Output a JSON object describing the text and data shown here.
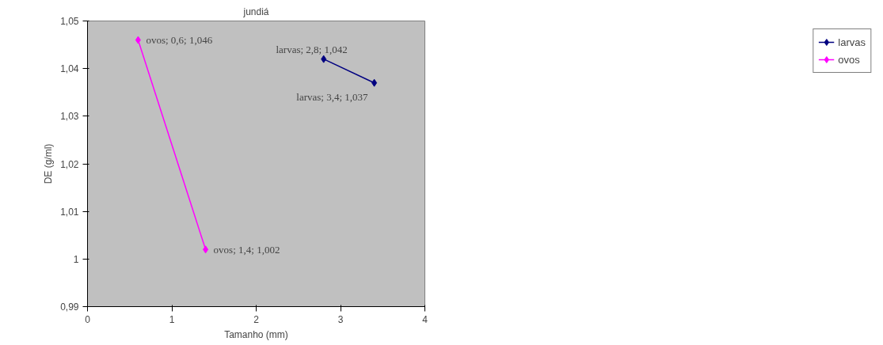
{
  "chart_data": {
    "type": "line",
    "title": "jundiá",
    "xlabel": "Tamanho (mm)",
    "ylabel": "DE (g/ml)",
    "xlim": [
      0,
      4
    ],
    "xticks": [
      0,
      1,
      2,
      3,
      4
    ],
    "ylim": [
      0.99,
      1.05
    ],
    "yticks": [
      {
        "value": 0.99,
        "label": "0,99"
      },
      1,
      {
        "value": 1.01,
        "label": "1,01"
      },
      {
        "value": 1.02,
        "label": "1,02"
      },
      {
        "value": 1.03,
        "label": "1,03"
      },
      {
        "value": 1.04,
        "label": "1,04"
      },
      {
        "value": 1.05,
        "label": "1,05"
      }
    ],
    "series": [
      {
        "name": "larvas",
        "color": "#000080",
        "x": [
          2.8,
          3.4
        ],
        "values": [
          1.042,
          1.037
        ],
        "value_labels": [
          "larvas; 2,8; 1,042",
          "larvas; 3,4; 1,037"
        ]
      },
      {
        "name": "ovos",
        "color": "#ff00ff",
        "x": [
          0.6,
          1.4
        ],
        "values": [
          1.046,
          1.002
        ],
        "value_labels": [
          "ovos; 0,6; 1,046",
          "ovos; 1,4; 1,002"
        ]
      }
    ],
    "marker": "diamond",
    "line_style": "solid",
    "grid": false,
    "legend": "right"
  }
}
